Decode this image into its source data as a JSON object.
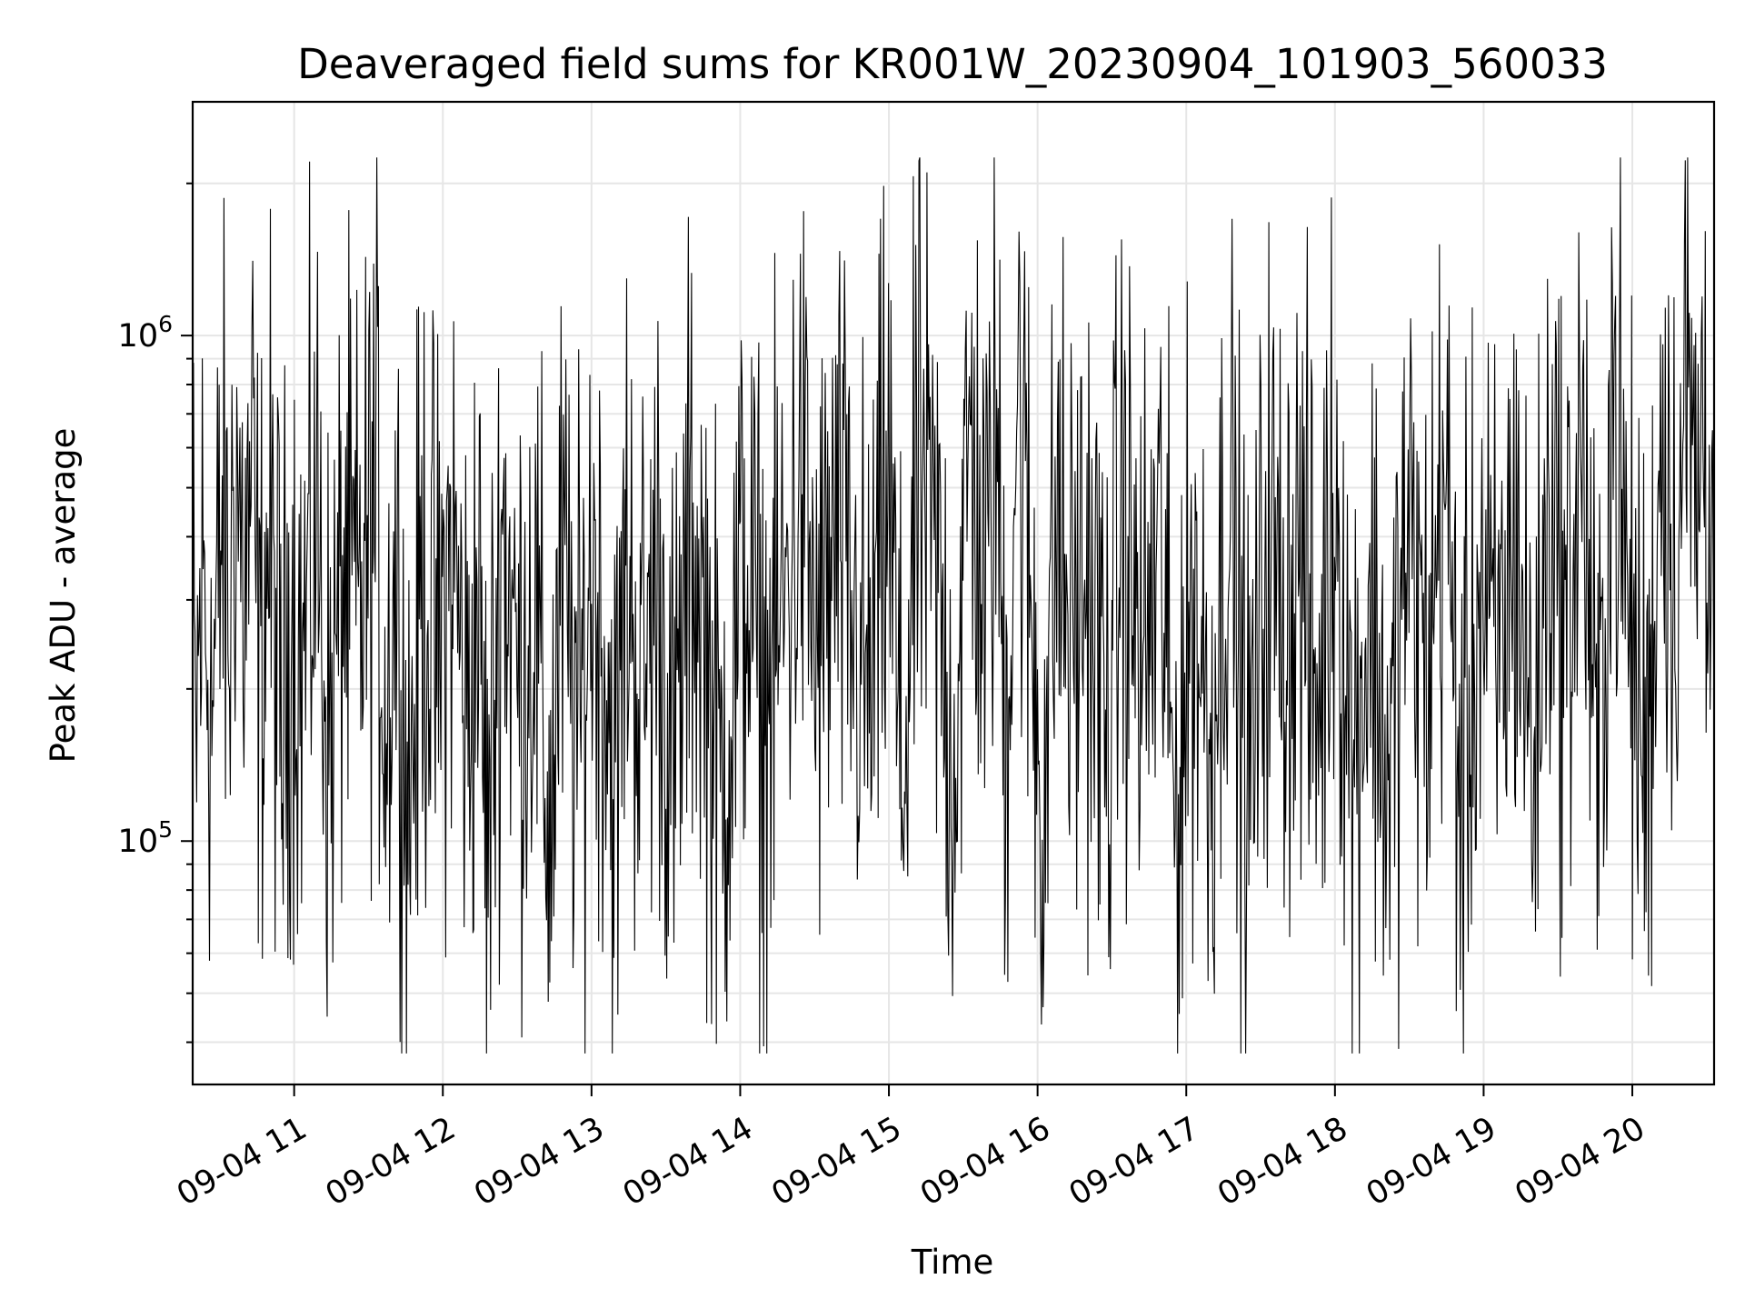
{
  "chart_data": {
    "type": "line",
    "title": "Deaveraged field sums for KR001W_20230904_101903_560033",
    "xlabel": "Time",
    "ylabel": "Peak ADU - average",
    "yscale": "log",
    "ylim": [
      33000,
      2900000
    ],
    "xlim": [
      "2023-09-04 10:19:03",
      "2023-09-04 20:33:00"
    ],
    "x_ticks": [
      {
        "time": "2023-09-04 11:00",
        "label": "09-04 11"
      },
      {
        "time": "2023-09-04 12:00",
        "label": "09-04 12"
      },
      {
        "time": "2023-09-04 13:00",
        "label": "09-04 13"
      },
      {
        "time": "2023-09-04 14:00",
        "label": "09-04 14"
      },
      {
        "time": "2023-09-04 15:00",
        "label": "09-04 15"
      },
      {
        "time": "2023-09-04 16:00",
        "label": "09-04 16"
      },
      {
        "time": "2023-09-04 17:00",
        "label": "09-04 17"
      },
      {
        "time": "2023-09-04 18:00",
        "label": "09-04 18"
      },
      {
        "time": "2023-09-04 19:00",
        "label": "09-04 19"
      },
      {
        "time": "2023-09-04 20:00",
        "label": "09-04 20"
      }
    ],
    "y_ticks": [
      {
        "value": 100000,
        "base": "10",
        "exp": "5"
      },
      {
        "value": 1000000,
        "base": "10",
        "exp": "6"
      }
    ],
    "grid": true,
    "legend": false,
    "color": "#000000",
    "series": [
      {
        "x": [
          "2023-09-04 10:19",
          "2023-09-04 10:20",
          "2023-09-04 10:23",
          "2023-09-04 10:27",
          "2023-09-04 10:31",
          "2023-09-04 10:34",
          "2023-09-04 10:36",
          "2023-09-04 10:40",
          "2023-09-04 10:43",
          "2023-09-04 10:46",
          "2023-09-04 10:50",
          "2023-09-04 10:55",
          "2023-09-04 10:59",
          "2023-09-04 11:03",
          "2023-09-04 11:09",
          "2023-09-04 11:14",
          "2023-09-04 11:20",
          "2023-09-04 11:26",
          "2023-09-04 11:33",
          "2023-09-04 11:37",
          "2023-09-04 11:41",
          "2023-09-04 11:46",
          "2023-09-04 11:52",
          "2023-09-04 11:58",
          "2023-09-04 12:04",
          "2023-09-04 12:10",
          "2023-09-04 12:14",
          "2023-09-04 12:18",
          "2023-09-04 12:24",
          "2023-09-04 12:30",
          "2023-09-04 12:37",
          "2023-09-04 12:43",
          "2023-09-04 12:48",
          "2023-09-04 12:55",
          "2023-09-04 13:00",
          "2023-09-04 13:05",
          "2023-09-04 13:10",
          "2023-09-04 13:14",
          "2023-09-04 13:20",
          "2023-09-04 13:27",
          "2023-09-04 13:33",
          "2023-09-04 13:40",
          "2023-09-04 13:46",
          "2023-09-04 13:52",
          "2023-09-04 14:02",
          "2023-09-04 14:10",
          "2023-09-04 14:18",
          "2023-09-04 14:25",
          "2023-09-04 14:31",
          "2023-09-04 14:39",
          "2023-09-04 14:45",
          "2023-09-04 14:52",
          "2023-09-04 15:00",
          "2023-09-04 15:05",
          "2023-09-04 15:12",
          "2023-09-04 15:20",
          "2023-09-04 15:26",
          "2023-09-04 15:33",
          "2023-09-04 15:39",
          "2023-09-04 15:43",
          "2023-09-04 15:47",
          "2023-09-04 15:52",
          "2023-09-04 15:56",
          "2023-09-04 16:02",
          "2023-09-04 16:08",
          "2023-09-04 16:13",
          "2023-09-04 16:20",
          "2023-09-04 16:28",
          "2023-09-04 16:34",
          "2023-09-04 16:42",
          "2023-09-04 16:50",
          "2023-09-04 16:55",
          "2023-09-04 17:03",
          "2023-09-04 17:10",
          "2023-09-04 17:17",
          "2023-09-04 17:25",
          "2023-09-04 17:33",
          "2023-09-04 17:39",
          "2023-09-04 17:46",
          "2023-09-04 17:53",
          "2023-09-04 18:00",
          "2023-09-04 18:07",
          "2023-09-04 18:14",
          "2023-09-04 18:22",
          "2023-09-04 18:29",
          "2023-09-04 18:37",
          "2023-09-04 18:44",
          "2023-09-04 18:51",
          "2023-09-04 18:58",
          "2023-09-04 19:05",
          "2023-09-04 19:13",
          "2023-09-04 19:20",
          "2023-09-04 19:27",
          "2023-09-04 19:33",
          "2023-09-04 19:40",
          "2023-09-04 19:46",
          "2023-09-04 19:52",
          "2023-09-04 19:58",
          "2023-09-04 20:06",
          "2023-09-04 20:12",
          "2023-09-04 20:17",
          "2023-09-04 20:22",
          "2023-09-04 20:26",
          "2023-09-04 20:29",
          "2023-09-04 20:33"
        ],
        "values": [
          450000,
          80000,
          380000,
          120000,
          580000,
          200000,
          1150000,
          300000,
          850000,
          160000,
          520000,
          95000,
          330000,
          170000,
          640000,
          90000,
          380000,
          260000,
          750000,
          110000,
          420000,
          52000,
          390000,
          180000,
          480000,
          100000,
          340000,
          36000,
          620000,
          160000,
          280000,
          42000,
          350000,
          95000,
          420000,
          210000,
          55000,
          460000,
          140000,
          380000,
          65000,
          520000,
          230000,
          60000,
          420000,
          115000,
          300000,
          800000,
          180000,
          520000,
          240000,
          130000,
          850000,
          55000,
          900000,
          330000,
          75000,
          1300000,
          260000,
          1500000,
          90000,
          1900000,
          430000,
          55000,
          620000,
          210000,
          370000,
          105000,
          600000,
          170000,
          460000,
          52000,
          330000,
          90000,
          820000,
          55000,
          540000,
          240000,
          460000,
          115000,
          880000,
          72000,
          300000,
          62000,
          540000,
          150000,
          920000,
          55000,
          340000,
          150000,
          560000,
          72000,
          850000,
          220000,
          1150000,
          50000,
          2000000,
          280000,
          75000,
          1450000,
          380000,
          1800000,
          650000,
          1700000,
          420000
        ]
      }
    ]
  }
}
